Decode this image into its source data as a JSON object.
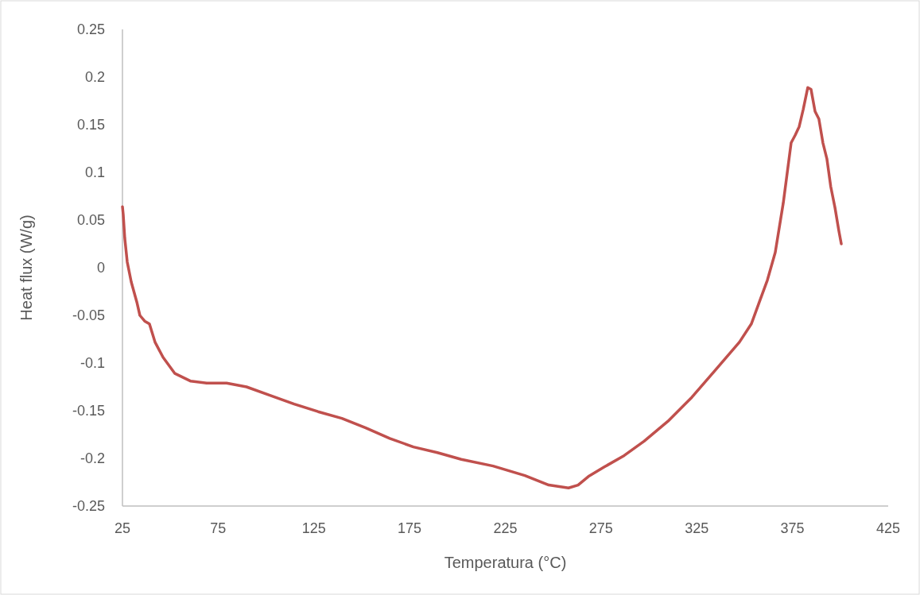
{
  "chart_data": {
    "type": "line",
    "xlabel": "Temperatura (°C)",
    "ylabel": "Heat flux (W/g)",
    "xlim": [
      25,
      425
    ],
    "xticks": [
      25,
      75,
      125,
      175,
      225,
      275,
      325,
      375,
      425
    ],
    "ylim": [
      -0.25,
      0.25
    ],
    "yticks": [
      -0.25,
      -0.2,
      -0.15,
      -0.1,
      -0.05,
      0,
      0.05,
      0.1,
      0.15,
      0.2,
      0.25
    ],
    "grid": false,
    "marker": "none",
    "line_style": "solid",
    "series": [
      {
        "color": "#c0504d",
        "x": [
          25,
          25.4,
          26.2,
          27.5,
          29.6,
          32.5,
          34.1,
          36.6,
          39.1,
          42,
          46.2,
          52.4,
          60.7,
          69,
          79.4,
          89.8,
          102.3,
          114.7,
          127.2,
          139.6,
          152.1,
          164.6,
          177,
          189.5,
          202,
          218.6,
          235.2,
          247.7,
          258,
          263,
          268.4,
          276.7,
          287.1,
          297.5,
          310,
          322.4,
          334.9,
          347.3,
          353.5,
          357.7,
          361.9,
          366,
          370.2,
          374.3,
          376.4,
          378.5,
          380.6,
          383,
          384.7,
          386.8,
          388.8,
          390.9,
          393,
          395,
          397.2,
          399.2,
          400.5
        ],
        "values": [
          0.064,
          0.056,
          0.031,
          0.006,
          -0.015,
          -0.036,
          -0.05,
          -0.056,
          -0.059,
          -0.078,
          -0.094,
          -0.111,
          -0.119,
          -0.121,
          -0.121,
          -0.125,
          -0.134,
          -0.143,
          -0.151,
          -0.158,
          -0.168,
          -0.179,
          -0.188,
          -0.194,
          -0.201,
          -0.208,
          -0.218,
          -0.228,
          -0.231,
          -0.228,
          -0.219,
          -0.209,
          -0.197,
          -0.182,
          -0.161,
          -0.136,
          -0.107,
          -0.078,
          -0.059,
          -0.036,
          -0.013,
          0.016,
          0.068,
          0.131,
          0.139,
          0.148,
          0.166,
          0.189,
          0.187,
          0.164,
          0.156,
          0.131,
          0.114,
          0.085,
          0.063,
          0.039,
          0.025
        ]
      }
    ]
  }
}
